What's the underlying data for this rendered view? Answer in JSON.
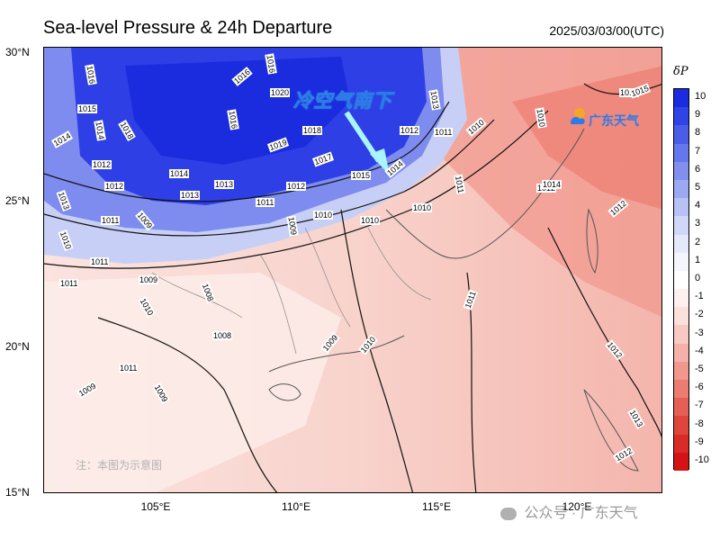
{
  "title": "Sea-level Pressure & 24h Departure",
  "datetime": "2025/03/03/00(UTC)",
  "annotation": "冷空气南下",
  "logo_text": "广东天气",
  "watermark": "公众号 · 广东天气",
  "note": "注：本图为示意图",
  "colorbar": {
    "title": "δP",
    "labels": [
      "10",
      "9",
      "8",
      "7",
      "6",
      "5",
      "4",
      "3",
      "2",
      "1",
      "0",
      "-1",
      "-2",
      "-3",
      "-4",
      "-5",
      "-6",
      "-7",
      "-8",
      "-9",
      "-10"
    ],
    "colors": [
      "#1a2be0",
      "#2f43e6",
      "#4a5de9",
      "#6577ec",
      "#8190ef",
      "#9ca9f2",
      "#b7c1f5",
      "#d0d7f8",
      "#e6e9fb",
      "#f4f5fd",
      "#ffffff",
      "#fdf0ee",
      "#fbe0dc",
      "#f8c9c3",
      "#f5b1a9",
      "#f1978d",
      "#ec7b70",
      "#e65f54",
      "#e0453c",
      "#da2c27",
      "#d41414"
    ]
  },
  "axes": {
    "lat_labels": [
      "30°N",
      "25°N",
      "20°N",
      "15°N"
    ],
    "lon_labels": [
      "105°E",
      "110°E",
      "115°E",
      "120°E"
    ]
  },
  "contour_labels": [
    "1016",
    "1015",
    "1018",
    "1016",
    "1016",
    "1020",
    "1013",
    "1014",
    "1014",
    "1018",
    "1016",
    "1012",
    "1011",
    "1010",
    "1010",
    "1012",
    "1012",
    "1019",
    "1017",
    "1015",
    "1014",
    "1013",
    "1012",
    "1014",
    "1013",
    "1013",
    "1011",
    "1012",
    "1010",
    "1010",
    "1012",
    "1011",
    "1009",
    "1010",
    "1010",
    "1011",
    "1010",
    "1009",
    "1011",
    "1011",
    "1008",
    "1009",
    "1008",
    "1010",
    "1009",
    "1010",
    "1011",
    "1012",
    "1009",
    "1009",
    "1011",
    "1013",
    "1014",
    "1012",
    "1015"
  ]
}
